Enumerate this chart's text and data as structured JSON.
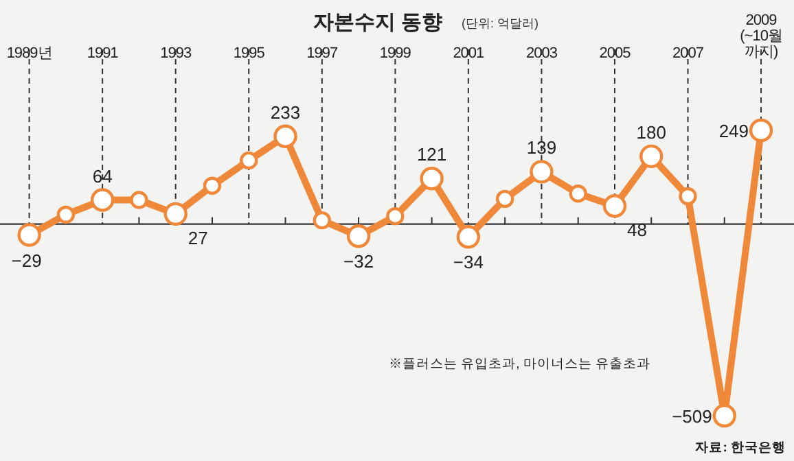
{
  "chart_data": {
    "type": "line",
    "title": "자본수지 동향",
    "subtitle": "(단위: 억달러)",
    "annotations": [
      "※플러스는 유입초과, 마이너스는 유출초과",
      "자료: 한국은행"
    ],
    "x": [
      1989,
      1990,
      1991,
      1992,
      1993,
      1994,
      1995,
      1996,
      1997,
      1998,
      1999,
      2000,
      2001,
      2002,
      2003,
      2004,
      2005,
      2006,
      2007,
      2008,
      2009
    ],
    "values": [
      -29,
      25,
      64,
      64,
      27,
      102,
      169,
      233,
      10,
      -32,
      21,
      121,
      -34,
      67,
      139,
      81,
      48,
      180,
      74,
      -509,
      249
    ],
    "value_labels": [
      "−29",
      null,
      "64",
      null,
      "27",
      null,
      null,
      "233",
      null,
      "−32",
      null,
      "121",
      "−34",
      null,
      "139",
      null,
      "48",
      "180",
      null,
      "−509",
      "249"
    ],
    "color": "#f0883a",
    "marker": "circle",
    "line_style": "solid",
    "ref_lines": [
      {
        "axis": "x",
        "value": 1989,
        "line_style": "dashed",
        "color": "#333333"
      },
      {
        "axis": "x",
        "value": 1991,
        "line_style": "dashed",
        "color": "#333333"
      },
      {
        "axis": "x",
        "value": 1993,
        "line_style": "dashed",
        "color": "#333333"
      },
      {
        "axis": "x",
        "value": 1995,
        "line_style": "dashed",
        "color": "#333333"
      },
      {
        "axis": "x",
        "value": 1997,
        "line_style": "dashed",
        "color": "#333333"
      },
      {
        "axis": "x",
        "value": 1999,
        "line_style": "dashed",
        "color": "#333333"
      },
      {
        "axis": "x",
        "value": 2001,
        "line_style": "dashed",
        "color": "#333333"
      },
      {
        "axis": "x",
        "value": 2003,
        "line_style": "dashed",
        "color": "#333333"
      },
      {
        "axis": "x",
        "value": 2005,
        "line_style": "dashed",
        "color": "#333333"
      },
      {
        "axis": "x",
        "value": 2007,
        "line_style": "dashed",
        "color": "#333333"
      },
      {
        "axis": "x",
        "value": 2009,
        "line_style": "dashed",
        "color": "#333333"
      }
    ],
    "tick_labels": "x",
    "xlim": [
      1988.2,
      2009.9
    ],
    "xticks": [
      {
        "value": 1989,
        "label": "1989년"
      },
      {
        "value": 1990,
        "label": null
      },
      1991,
      {
        "value": 1992,
        "label": null
      },
      1993,
      {
        "value": 1994,
        "label": null
      },
      1995,
      {
        "value": 1996,
        "label": null
      },
      1997,
      {
        "value": 1998,
        "label": null
      },
      1999,
      {
        "value": 2000,
        "label": null
      },
      2001,
      {
        "value": 2002,
        "label": null
      },
      2003,
      {
        "value": 2004,
        "label": null
      },
      2005,
      {
        "value": 2006,
        "label": null
      },
      2007,
      {
        "value": 2008,
        "label": null
      },
      {
        "value": 2009,
        "label": "2009\n(~10월\n까지)"
      }
    ]
  }
}
